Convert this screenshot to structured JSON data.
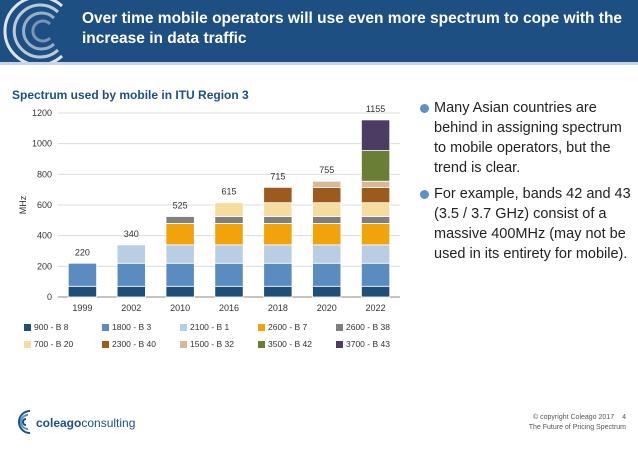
{
  "header": {
    "title": "Over time mobile operators will use even more spectrum to cope with the increase in data traffic"
  },
  "colors": {
    "header_bg": "#1d4f83",
    "bullet_dot": "#5a91c8"
  },
  "chart_data": {
    "type": "bar",
    "stacked": true,
    "title": "Spectrum used by mobile in ITU Region 3",
    "xlabel": "",
    "ylabel": "MHz",
    "ylim": [
      0,
      1200
    ],
    "yticks": [
      0,
      200,
      400,
      600,
      800,
      1000,
      1200
    ],
    "grid": true,
    "legend_position": "bottom",
    "categories": [
      "1999",
      "2002",
      "2010",
      "2016",
      "2018",
      "2020",
      "2022"
    ],
    "totals": [
      220,
      340,
      525,
      615,
      715,
      755,
      1155
    ],
    "series": [
      {
        "name": "900 - B 8",
        "color": "#1f4e79",
        "values": [
          70,
          70,
          70,
          70,
          70,
          70,
          70
        ]
      },
      {
        "name": "1800 - B 3",
        "color": "#5b8cbf",
        "values": [
          150,
          150,
          150,
          150,
          150,
          150,
          150
        ]
      },
      {
        "name": "2100 - B 1",
        "color": "#b9cde4",
        "values": [
          0,
          120,
          120,
          120,
          120,
          120,
          120
        ]
      },
      {
        "name": "2600 - B 7",
        "color": "#f0a30a",
        "values": [
          0,
          0,
          140,
          140,
          140,
          140,
          140
        ]
      },
      {
        "name": "2600 - B 38",
        "color": "#7f7f7f",
        "values": [
          0,
          0,
          45,
          45,
          45,
          45,
          45
        ]
      },
      {
        "name": "700 - B 20",
        "color": "#f7dca0",
        "values": [
          0,
          0,
          0,
          90,
          90,
          90,
          90
        ]
      },
      {
        "name": "2300 - B 40",
        "color": "#9c5a1f",
        "values": [
          0,
          0,
          0,
          0,
          100,
          100,
          100
        ]
      },
      {
        "name": "1500 - B 32",
        "color": "#d8b896",
        "values": [
          0,
          0,
          0,
          0,
          0,
          40,
          40
        ]
      },
      {
        "name": "3500 - B 42",
        "color": "#6a7f35",
        "values": [
          0,
          0,
          0,
          0,
          0,
          0,
          200
        ]
      },
      {
        "name": "3700 - B 43",
        "color": "#4b3c63",
        "values": [
          0,
          0,
          0,
          0,
          0,
          0,
          200
        ]
      }
    ]
  },
  "bullets": [
    {
      "text": "Many Asian countries are behind in assigning spectrum to mobile operators, but the trend is clear."
    },
    {
      "text": "For example, bands 42 and 43 (3.5 / 3.7 GHz) consist of a massive 400MHz (may not be used in its entirety for mobile)."
    }
  ],
  "footer": {
    "logo_light": "coleago",
    "logo_dark": "consulting",
    "copyright": "© copyright Coleago 2017",
    "page": "4",
    "subtitle": "The Future of Pricing Spectrum"
  }
}
